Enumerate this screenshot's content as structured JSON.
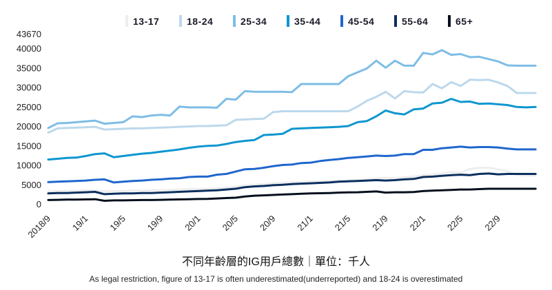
{
  "chart_data": {
    "type": "line",
    "title": "不同年齡層的IG用戶總數｜單位：千人",
    "subtitle": "As legal restriction, figure of 13-17 is often underestimated(underreported) and 18-24 is overestimated",
    "xlabel": "",
    "ylabel": "",
    "ylim": [
      0,
      43670
    ],
    "yticks": [
      0,
      5000,
      10000,
      15000,
      20000,
      25000,
      30000,
      35000,
      40000,
      43670
    ],
    "x_start": "2018/9",
    "x_frequency": "monthly",
    "xtick_labels": [
      "2018/9",
      "19/1",
      "19/5",
      "19/9",
      "20/1",
      "20/5",
      "20/9",
      "21/1",
      "21/5",
      "21/9",
      "22/1",
      "22/5",
      "22/9"
    ],
    "grid": false,
    "legend_position": "top",
    "series": [
      {
        "name": "13-17",
        "color": "#eeeeee",
        "values": [
          3200,
          3300,
          3300,
          3400,
          3400,
          3500,
          3200,
          3300,
          3300,
          3400,
          3400,
          3500,
          3500,
          3600,
          3700,
          3800,
          3800,
          3900,
          4000,
          4200,
          4400,
          4700,
          4900,
          5100,
          5300,
          5400,
          5500,
          5600,
          5700,
          5800,
          5900,
          6000,
          6100,
          6200,
          6300,
          6500,
          6700,
          6600,
          6900,
          7000,
          7400,
          7600,
          7800,
          8200,
          8000,
          9000,
          9300,
          9300,
          8900,
          8400,
          7400,
          7300,
          7300
        ]
      },
      {
        "name": "18-24",
        "color": "#bcd8ec",
        "values": [
          18300,
          19400,
          19500,
          19600,
          19700,
          19800,
          19100,
          19200,
          19300,
          19400,
          19400,
          19500,
          19600,
          19700,
          19800,
          19900,
          20000,
          20000,
          20100,
          20200,
          21600,
          21700,
          21800,
          21900,
          23600,
          23800,
          23800,
          23800,
          23800,
          23800,
          23800,
          23800,
          23800,
          25000,
          26500,
          27500,
          28800,
          27100,
          29000,
          28700,
          28600,
          30800,
          29700,
          31300,
          30300,
          31900,
          31800,
          31900,
          31200,
          30300,
          28500,
          28500,
          28500
        ]
      },
      {
        "name": "25-34",
        "color": "#7dbde6",
        "values": [
          19500,
          20700,
          20800,
          21000,
          21200,
          21400,
          20600,
          20800,
          21000,
          22500,
          22300,
          22700,
          22900,
          22700,
          25000,
          24800,
          24800,
          24800,
          24700,
          27000,
          26800,
          29000,
          28800,
          28800,
          28800,
          28800,
          28700,
          30800,
          30800,
          30800,
          30800,
          30800,
          32800,
          33800,
          34800,
          36800,
          35000,
          36800,
          35500,
          35500,
          38800,
          38400,
          39500,
          38300,
          38500,
          37700,
          37800,
          37200,
          36600,
          35600,
          35500,
          35500,
          35500
        ]
      },
      {
        "name": "35-44",
        "color": "#0d96d0",
        "values": [
          11400,
          11600,
          11800,
          11900,
          12300,
          12800,
          13000,
          12000,
          12300,
          12600,
          12900,
          13100,
          13400,
          13700,
          14000,
          14400,
          14700,
          14900,
          15000,
          15400,
          15900,
          16200,
          16400,
          17700,
          17800,
          18000,
          19300,
          19400,
          19500,
          19600,
          19700,
          19800,
          20000,
          21000,
          21300,
          22500,
          24000,
          23300,
          23000,
          24300,
          24500,
          25800,
          26000,
          27000,
          26200,
          26300,
          25700,
          25800,
          25600,
          25400,
          24900,
          24800,
          24900
        ]
      },
      {
        "name": "45-54",
        "color": "#1f66cc",
        "values": [
          5600,
          5700,
          5800,
          5900,
          6000,
          6200,
          6300,
          5500,
          5700,
          5900,
          6000,
          6200,
          6300,
          6500,
          6600,
          6900,
          7000,
          7000,
          7500,
          7700,
          8300,
          8900,
          9000,
          9300,
          9700,
          10000,
          10100,
          10500,
          10600,
          11000,
          11300,
          11500,
          11800,
          12000,
          12200,
          12400,
          12300,
          12400,
          12800,
          12800,
          13900,
          13900,
          14300,
          14500,
          14700,
          14500,
          14600,
          14600,
          14500,
          14200,
          14000,
          14000,
          14000
        ]
      },
      {
        "name": "55-64",
        "color": "#0b2f5e",
        "values": [
          2700,
          2800,
          2800,
          2900,
          3000,
          3100,
          2500,
          2600,
          2700,
          2700,
          2800,
          2800,
          2900,
          3000,
          3100,
          3200,
          3300,
          3400,
          3500,
          3700,
          3900,
          4300,
          4500,
          4600,
          4800,
          4900,
          5100,
          5200,
          5300,
          5400,
          5500,
          5700,
          5800,
          5900,
          6000,
          6100,
          6000,
          6100,
          6300,
          6400,
          6900,
          7000,
          7200,
          7400,
          7500,
          7400,
          7700,
          7800,
          7600,
          7700,
          7700,
          7700,
          7700
        ]
      },
      {
        "name": "65+",
        "color": "#040f1e",
        "values": [
          1000,
          1050,
          1100,
          1100,
          1150,
          1200,
          800,
          900,
          900,
          950,
          1000,
          1000,
          1050,
          1100,
          1150,
          1200,
          1250,
          1300,
          1400,
          1500,
          1600,
          1900,
          2100,
          2200,
          2300,
          2400,
          2500,
          2600,
          2700,
          2750,
          2800,
          2900,
          2950,
          3000,
          3100,
          3200,
          2900,
          3000,
          3000,
          3050,
          3300,
          3400,
          3500,
          3600,
          3700,
          3700,
          3800,
          3900,
          3900,
          3900,
          3900,
          3900,
          3900
        ]
      }
    ]
  }
}
